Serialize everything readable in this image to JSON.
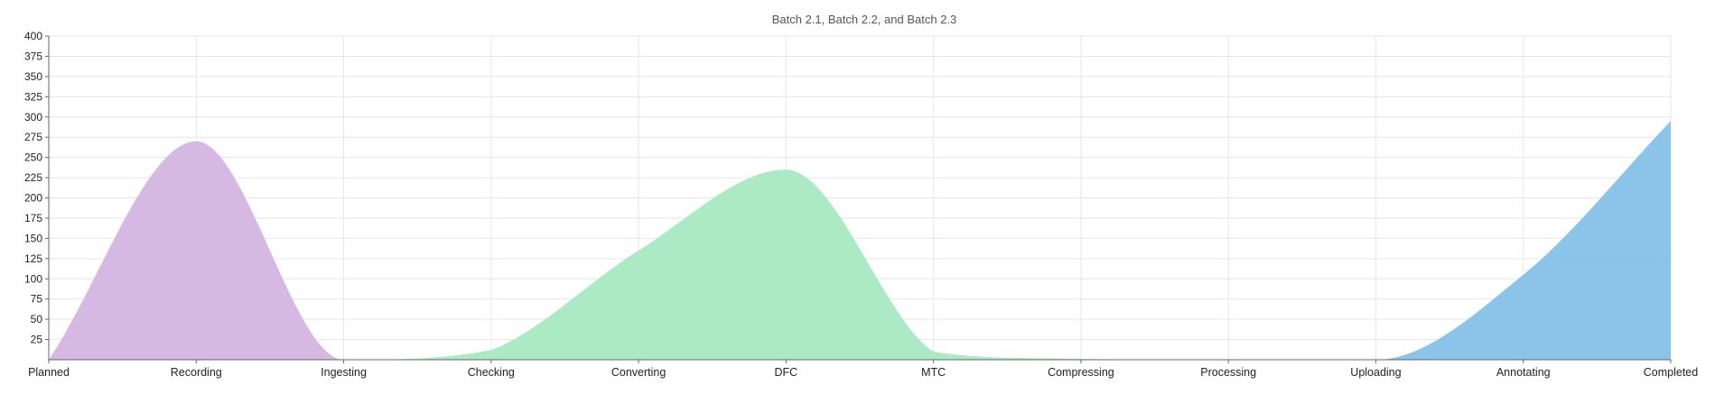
{
  "chart_data": {
    "type": "area",
    "title": "Batch 2.1, Batch 2.2, and Batch 2.3",
    "xlabel": "",
    "ylabel": "",
    "categories": [
      "Planned",
      "Recording",
      "Ingesting",
      "Checking",
      "Converting",
      "DFC",
      "MTC",
      "Compressing",
      "Processing",
      "Uploading",
      "Annotating",
      "Completed"
    ],
    "yticks": [
      25,
      50,
      75,
      100,
      125,
      150,
      175,
      200,
      225,
      250,
      275,
      300,
      325,
      350,
      375,
      400
    ],
    "ylim": [
      0,
      400
    ],
    "grid": true,
    "legend": "none",
    "series": [
      {
        "color": "#d4b5e0",
        "values": [
          0,
          270,
          0,
          0,
          0,
          0,
          0,
          0,
          0,
          0,
          0,
          0
        ]
      },
      {
        "color": "#a8e9c3",
        "values": [
          0,
          0,
          0,
          12,
          135,
          235,
          10,
          1,
          0,
          0,
          0,
          0
        ]
      },
      {
        "color": "#85c0e8",
        "values": [
          0,
          0,
          0,
          0,
          0,
          0,
          0,
          0,
          0,
          0,
          105,
          295
        ]
      }
    ]
  }
}
